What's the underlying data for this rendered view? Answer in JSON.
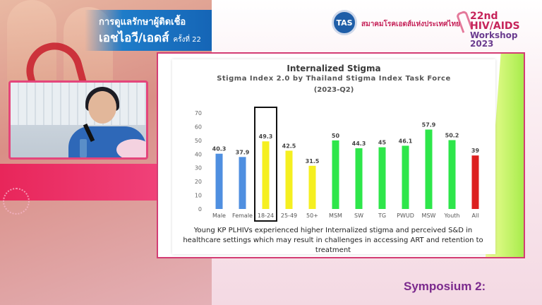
{
  "header": {
    "thai_title_line1": "การดูแลรักษาผู้ติดเชื้อ",
    "thai_title_line2": "เอชไอวี/เอดส์",
    "thai_title_suffix": "ครั้งที่ 22",
    "tas_logo_text": "TAS",
    "tas_org_name": "สมาคมโรคเอดส์แห่งประเทศไทย",
    "workshop_line1": "22nd HIV/AIDS",
    "workshop_line2": "Workshop 2023"
  },
  "slide": {
    "title": "Internalized Stigma",
    "subtitle": "Stigma Index 2.0 by Thailand Stigma Index Task Force",
    "period": "(2023-Q2)",
    "caption": "Young KP PLHIVs experienced higher Internalized stigma and perceived S&D in healthcare settings which may result in challenges in accessing ART and retention to treatment"
  },
  "chart_data": {
    "type": "bar",
    "title": "Internalized Stigma",
    "categories": [
      "Male",
      "Female",
      "18-24",
      "25-49",
      "50+",
      "MSM",
      "SW",
      "TG",
      "PWUD",
      "MSW",
      "Youth",
      "All"
    ],
    "values": [
      40.3,
      37.9,
      49.3,
      42.5,
      31.5,
      50,
      44.3,
      45,
      46.1,
      57.9,
      50.2,
      39
    ],
    "bar_colors": [
      "#4f8fe0",
      "#4f8fe0",
      "#f5ef20",
      "#f5ef20",
      "#f5ef20",
      "#2ee64a",
      "#2ee64a",
      "#2ee64a",
      "#2ee64a",
      "#2ee64a",
      "#2ee64a",
      "#dc1f1f"
    ],
    "highlighted_category": "18-24",
    "ylim": [
      0,
      70
    ],
    "yticks": [
      0,
      10,
      20,
      30,
      40,
      50,
      60,
      70
    ],
    "grid": false
  },
  "footer": {
    "symposium_label": "Symposium 2:"
  }
}
